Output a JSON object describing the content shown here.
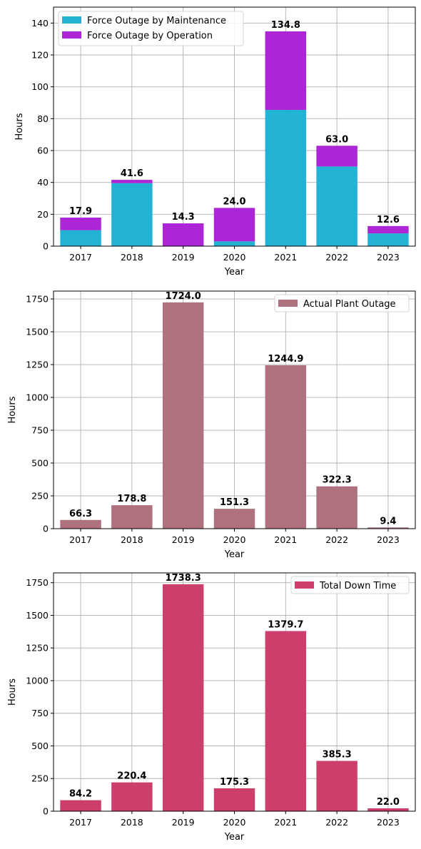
{
  "chart_data": [
    {
      "type": "bar",
      "stacked": true,
      "categories": [
        "2017",
        "2018",
        "2019",
        "2020",
        "2021",
        "2022",
        "2023"
      ],
      "series": [
        {
          "name": "Force Outage by Maintenance",
          "color": "#22b2d4",
          "values": [
            10.0,
            39.5,
            0.0,
            3.0,
            85.5,
            50.0,
            8.0
          ]
        },
        {
          "name": "Force Outage by Operation",
          "color": "#ad26d6",
          "values": [
            7.9,
            2.1,
            14.3,
            21.0,
            49.3,
            13.0,
            4.6
          ]
        }
      ],
      "totals": [
        "17.9",
        "41.6",
        "14.3",
        "24.0",
        "134.8",
        "63.0",
        "12.6"
      ],
      "xlabel": "Year",
      "ylabel": "Hours",
      "ylim": [
        0,
        150
      ],
      "yticks": [
        "0",
        "20",
        "40",
        "60",
        "80",
        "100",
        "120",
        "140"
      ],
      "grid": true,
      "legend_position": "upper-left"
    },
    {
      "type": "bar",
      "categories": [
        "2017",
        "2018",
        "2019",
        "2020",
        "2021",
        "2022",
        "2023"
      ],
      "series": [
        {
          "name": "Actual Plant Outage",
          "color": "#ad727e",
          "values": [
            66.3,
            178.8,
            1724.0,
            151.3,
            1244.9,
            322.3,
            9.4
          ]
        }
      ],
      "labels": [
        "66.3",
        "178.8",
        "1724.0",
        "151.3",
        "1244.9",
        "322.3",
        "9.4"
      ],
      "xlabel": "Year",
      "ylabel": "Hours",
      "ylim": [
        0,
        1810
      ],
      "yticks": [
        "0",
        "250",
        "500",
        "750",
        "1000",
        "1250",
        "1500",
        "1750"
      ],
      "grid": true,
      "legend_position": "upper-right"
    },
    {
      "type": "bar",
      "categories": [
        "2017",
        "2018",
        "2019",
        "2020",
        "2021",
        "2022",
        "2023"
      ],
      "series": [
        {
          "name": "Total Down Time",
          "color": "#cc3f6b",
          "values": [
            84.2,
            220.4,
            1738.3,
            175.3,
            1379.7,
            385.3,
            22.0
          ]
        }
      ],
      "labels": [
        "84.2",
        "220.4",
        "1738.3",
        "175.3",
        "1379.7",
        "385.3",
        "22.0"
      ],
      "xlabel": "Year",
      "ylabel": "Hours",
      "ylim": [
        0,
        1825
      ],
      "yticks": [
        "0",
        "250",
        "500",
        "750",
        "1000",
        "1250",
        "1500",
        "1750"
      ],
      "grid": true,
      "legend_position": "upper-right"
    }
  ]
}
